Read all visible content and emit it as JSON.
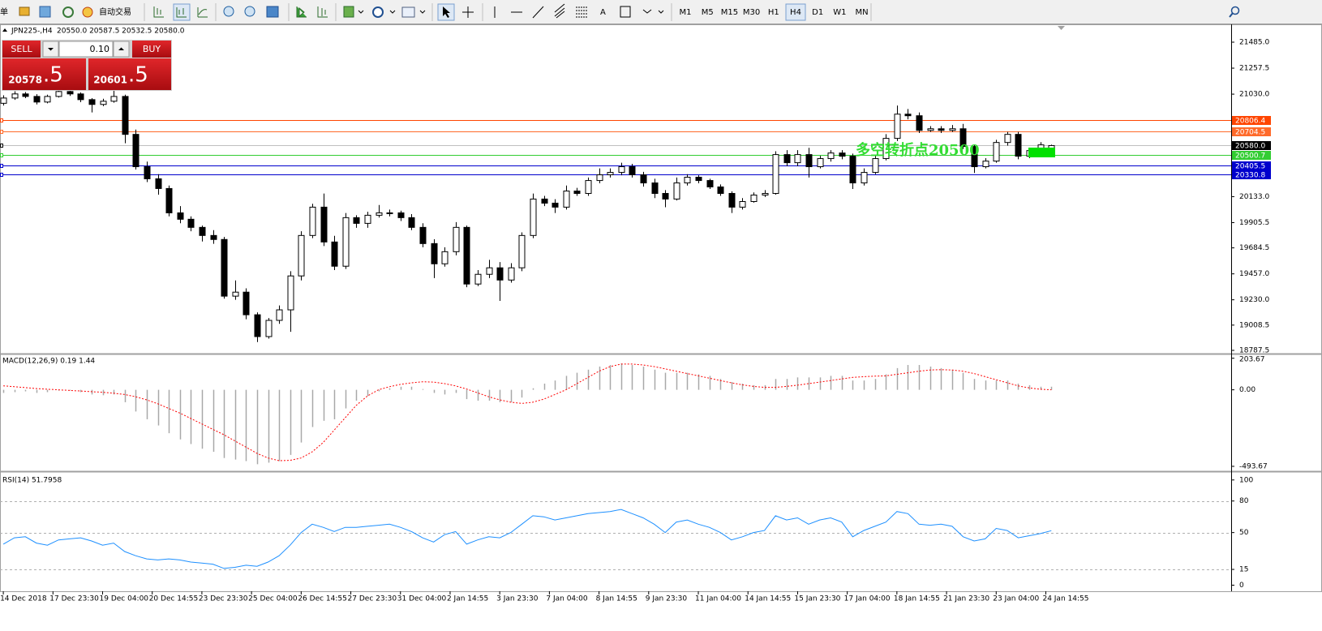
{
  "toolbar": {
    "cut_label": "单",
    "auto_trading": "自动交易",
    "timeframes": [
      "M1",
      "M5",
      "M15",
      "M30",
      "H1",
      "H4",
      "D1",
      "W1",
      "MN"
    ],
    "active_timeframe": "H4"
  },
  "trade_panel": {
    "sell": "SELL",
    "buy": "BUY",
    "volume": "0.10",
    "bid_main": "20578",
    "bid_frac": ".5",
    "ask_main": "20601",
    "ask_frac": ".5"
  },
  "chart_data": [
    {
      "type": "candlestick",
      "title": "JPN225-,H4",
      "ohlc_info": "20550.0 20587.5 20532.5 20580.0",
      "ohlc": [
        [
          20950,
          21020,
          20930,
          20996
        ],
        [
          20996,
          21055,
          20980,
          21032
        ],
        [
          21032,
          21048,
          20995,
          21010
        ],
        [
          21010,
          21030,
          20940,
          20961
        ],
        [
          20961,
          21025,
          20950,
          21010
        ],
        [
          21010,
          21070,
          21000,
          21053
        ],
        [
          21053,
          21075,
          21015,
          21032
        ],
        [
          21032,
          21045,
          20960,
          20982
        ],
        [
          20982,
          20995,
          20870,
          20940
        ],
        [
          20940,
          20990,
          20925,
          20968
        ],
        [
          20968,
          21060,
          20955,
          21010
        ],
        [
          21010,
          21025,
          20600,
          20678
        ],
        [
          20678,
          20720,
          20370,
          20395
        ],
        [
          20395,
          20440,
          20260,
          20289
        ],
        [
          20289,
          20330,
          20150,
          20204
        ],
        [
          20204,
          20230,
          19960,
          19991
        ],
        [
          19991,
          20050,
          19900,
          19935
        ],
        [
          19935,
          19960,
          19830,
          19864
        ],
        [
          19864,
          19880,
          19740,
          19793
        ],
        [
          19793,
          19840,
          19720,
          19758
        ],
        [
          19758,
          19780,
          19240,
          19262
        ],
        [
          19262,
          19400,
          19230,
          19297
        ],
        [
          19297,
          19330,
          19060,
          19099
        ],
        [
          19099,
          19120,
          18860,
          18908
        ],
        [
          18908,
          19070,
          18890,
          19050
        ],
        [
          19050,
          19180,
          19020,
          19142
        ],
        [
          19142,
          19480,
          18950,
          19439
        ],
        [
          19439,
          19830,
          19400,
          19793
        ],
        [
          19793,
          20070,
          19770,
          20041
        ],
        [
          20041,
          20160,
          19700,
          19736
        ],
        [
          19736,
          19790,
          19490,
          19524
        ],
        [
          19524,
          19990,
          19500,
          19949
        ],
        [
          19949,
          19970,
          19860,
          19899
        ],
        [
          19899,
          20000,
          19860,
          19970
        ],
        [
          19970,
          20060,
          19950,
          19991
        ],
        [
          19991,
          20020,
          19960,
          19991
        ],
        [
          19991,
          20010,
          19920,
          19949
        ],
        [
          19949,
          19980,
          19840,
          19864
        ],
        [
          19864,
          19900,
          19690,
          19722
        ],
        [
          19722,
          19760,
          19420,
          19545
        ],
        [
          19545,
          19690,
          19520,
          19651
        ],
        [
          19651,
          19910,
          19620,
          19864
        ],
        [
          19864,
          19880,
          19340,
          19368
        ],
        [
          19368,
          19490,
          19350,
          19453
        ],
        [
          19453,
          19580,
          19420,
          19510
        ],
        [
          19510,
          19560,
          19220,
          19403
        ],
        [
          19403,
          19550,
          19380,
          19510
        ],
        [
          19510,
          19820,
          19480,
          19793
        ],
        [
          19793,
          20160,
          19770,
          20112
        ],
        [
          20112,
          20140,
          20050,
          20076
        ],
        [
          20076,
          20110,
          19990,
          20041
        ],
        [
          20041,
          20230,
          20020,
          20182
        ],
        [
          20182,
          20210,
          20140,
          20161
        ],
        [
          20161,
          20300,
          20140,
          20274
        ],
        [
          20274,
          20380,
          20250,
          20324
        ],
        [
          20324,
          20380,
          20300,
          20345
        ],
        [
          20345,
          20430,
          20320,
          20395
        ],
        [
          20395,
          20420,
          20300,
          20324
        ],
        [
          20324,
          20350,
          20220,
          20253
        ],
        [
          20253,
          20290,
          20120,
          20161
        ],
        [
          20161,
          20190,
          20040,
          20112
        ],
        [
          20112,
          20300,
          20100,
          20253
        ],
        [
          20253,
          20330,
          20230,
          20303
        ],
        [
          20303,
          20320,
          20250,
          20274
        ],
        [
          20274,
          20290,
          20200,
          20218
        ],
        [
          20218,
          20240,
          20140,
          20161
        ],
        [
          20161,
          20180,
          19990,
          20041
        ],
        [
          20041,
          20120,
          20020,
          20090
        ],
        [
          20090,
          20170,
          20080,
          20147
        ],
        [
          20147,
          20190,
          20130,
          20161
        ],
        [
          20161,
          20530,
          20150,
          20501
        ],
        [
          20501,
          20540,
          20400,
          20430
        ],
        [
          20430,
          20540,
          20400,
          20501
        ],
        [
          20501,
          20560,
          20300,
          20395
        ],
        [
          20395,
          20490,
          20380,
          20466
        ],
        [
          20466,
          20540,
          20440,
          20515
        ],
        [
          20515,
          20540,
          20460,
          20487
        ],
        [
          20487,
          20510,
          20200,
          20253
        ],
        [
          20253,
          20380,
          20230,
          20345
        ],
        [
          20345,
          20490,
          20330,
          20466
        ],
        [
          20466,
          20680,
          20450,
          20643
        ],
        [
          20643,
          20930,
          20620,
          20855
        ],
        [
          20855,
          20900,
          20810,
          20841
        ],
        [
          20841,
          20870,
          20690,
          20713
        ],
        [
          20713,
          20750,
          20700,
          20727
        ],
        [
          20727,
          20750,
          20690,
          20713
        ],
        [
          20713,
          20760,
          20700,
          20727
        ],
        [
          20727,
          20770,
          20550,
          20572
        ],
        [
          20572,
          20590,
          20340,
          20395
        ],
        [
          20395,
          20470,
          20380,
          20444
        ],
        [
          20444,
          20630,
          20430,
          20607
        ],
        [
          20607,
          20700,
          20580,
          20678
        ],
        [
          20678,
          20700,
          20460,
          20487
        ],
        [
          20487,
          20560,
          20470,
          20536
        ],
        [
          20536,
          20610,
          20520,
          20586
        ],
        [
          20550,
          20587.5,
          20532.5,
          20580
        ]
      ],
      "xlim": [
        -0.3,
        111.3
      ],
      "xticks": [
        {
          "value": 0,
          "label": "14 Dec 2018"
        },
        {
          "value": 4.5,
          "label": "17 Dec 23:30"
        },
        {
          "value": 9,
          "label": "19 Dec 04:00"
        },
        {
          "value": 13.5,
          "label": "20 Dec 14:55"
        },
        {
          "value": 18,
          "label": "23 Dec 23:30"
        },
        {
          "value": 22.5,
          "label": "25 Dec 04:00"
        },
        {
          "value": 27,
          "label": "26 Dec 14:55"
        },
        {
          "value": 31.5,
          "label": "27 Dec 23:30"
        },
        {
          "value": 36,
          "label": "31 Dec 04:00"
        },
        {
          "value": 40.5,
          "label": "2 Jan 14:55"
        },
        {
          "value": 45,
          "label": "3 Jan 23:30"
        },
        {
          "value": 49.5,
          "label": "7 Jan 04:00"
        },
        {
          "value": 54,
          "label": "8 Jan 14:55"
        },
        {
          "value": 58.5,
          "label": "9 Jan 23:30"
        },
        {
          "value": 63,
          "label": "11 Jan 04:00"
        },
        {
          "value": 67.5,
          "label": "14 Jan 14:55"
        },
        {
          "value": 72,
          "label": "15 Jan 23:30"
        },
        {
          "value": 76.5,
          "label": "17 Jan 04:00"
        },
        {
          "value": 81,
          "label": "18 Jan 14:55"
        },
        {
          "value": 85.5,
          "label": "21 Jan 23:30"
        },
        {
          "value": 90,
          "label": "23 Jan 04:00"
        },
        {
          "value": 94.5,
          "label": "24 Jan 14:55"
        }
      ],
      "ylim": [
        18766,
        21634
      ],
      "yticks": [
        {
          "value": 21485,
          "label": "21485.0"
        },
        21257.5,
        {
          "value": 21030,
          "label": "21030.0"
        },
        {
          "value": 20133,
          "label": "20133.0"
        },
        19905.5,
        19684.5,
        {
          "value": 19457,
          "label": "19457.0"
        },
        {
          "value": 19230,
          "label": "19230.0"
        },
        19008.5,
        18787.5
      ],
      "levels": [
        {
          "value": 20806.4,
          "color": "#ff4500"
        },
        {
          "value": 20704.5,
          "color": "#ff6a2a"
        },
        {
          "value": 20580,
          "label": "20580.0",
          "color": "#000000",
          "line_color": "#c0c0c0"
        },
        {
          "value": 20500.7,
          "color": "#32cd32"
        },
        {
          "value": 20405.5,
          "color": "#0000cd"
        },
        {
          "value": 20330.8,
          "color": "#0000cd"
        }
      ],
      "annotation": "多空转折点20500",
      "annotation_color": "#33dd33"
    },
    {
      "type": "macd",
      "title": "MACD(12,26,9) 0.19 1.44",
      "histogram": [
        -20,
        -15,
        -10,
        -20,
        -15,
        -5,
        -5,
        -15,
        -30,
        -35,
        -30,
        -80,
        -140,
        -190,
        -230,
        -280,
        -320,
        -350,
        -380,
        -400,
        -440,
        -450,
        -460,
        -480,
        -470,
        -460,
        -420,
        -340,
        -240,
        -200,
        -190,
        -120,
        -70,
        -40,
        -10,
        10,
        20,
        20,
        5,
        -20,
        -30,
        -20,
        -60,
        -70,
        -70,
        -80,
        -80,
        -50,
        10,
        40,
        60,
        90,
        110,
        130,
        150,
        160,
        170,
        160,
        150,
        130,
        110,
        110,
        110,
        100,
        90,
        70,
        50,
        40,
        30,
        30,
        70,
        70,
        80,
        80,
        80,
        90,
        90,
        60,
        60,
        70,
        100,
        140,
        160,
        160,
        150,
        140,
        130,
        110,
        70,
        60,
        60,
        60,
        40,
        30,
        20,
        20
      ],
      "histogram_color": "#a8a8a8",
      "signal": [
        26,
        20,
        14,
        8,
        4,
        0,
        -4,
        -8,
        -12,
        -16,
        -22,
        -30,
        -45,
        -65,
        -90,
        -120,
        -150,
        -185,
        -220,
        -255,
        -290,
        -330,
        -370,
        -410,
        -440,
        -457,
        -455,
        -440,
        -400,
        -340,
        -260,
        -180,
        -100,
        -40,
        0,
        20,
        35,
        45,
        52,
        50,
        40,
        25,
        5,
        -20,
        -45,
        -65,
        -80,
        -88,
        -80,
        -60,
        -30,
        0,
        40,
        80,
        120,
        150,
        166,
        166,
        160,
        150,
        135,
        120,
        105,
        90,
        75,
        60,
        45,
        32,
        22,
        16,
        16,
        22,
        30,
        40,
        50,
        60,
        70,
        80,
        85,
        88,
        90,
        100,
        110,
        120,
        128,
        130,
        128,
        120,
        105,
        85,
        65,
        45,
        25,
        12,
        4,
        0
      ],
      "signal_color": "#ff0000",
      "ylim": [
        -520,
        223
      ],
      "yticks": [
        203.67,
        {
          "value": 0,
          "label": "0.00"
        },
        -493.67
      ]
    },
    {
      "type": "line",
      "title": "RSI(14) 51.7958",
      "values": [
        39,
        45,
        46,
        40,
        38,
        43,
        44,
        45,
        42,
        38,
        40,
        32,
        28,
        25,
        24,
        25,
        24,
        22,
        21,
        20,
        16,
        17,
        19,
        18,
        22,
        28,
        38,
        50,
        58,
        55,
        51,
        55,
        55,
        56,
        57,
        58,
        55,
        51,
        45,
        41,
        48,
        51,
        39,
        43,
        46,
        45,
        50,
        58,
        66,
        65,
        62,
        64,
        66,
        68,
        69,
        70,
        72,
        68,
        64,
        58,
        50,
        60,
        62,
        58,
        55,
        50,
        43,
        46,
        50,
        52,
        66,
        62,
        64,
        58,
        62,
        64,
        60,
        46,
        52,
        56,
        60,
        70,
        68,
        58,
        57,
        58,
        56,
        46,
        42,
        44,
        54,
        52,
        45,
        47,
        49,
        51.8
      ],
      "color": "#1e90ff",
      "ylim": [
        -5,
        106
      ],
      "yticks": [
        100,
        80,
        50,
        15,
        0
      ],
      "levels": [
        80,
        50,
        15
      ]
    }
  ]
}
